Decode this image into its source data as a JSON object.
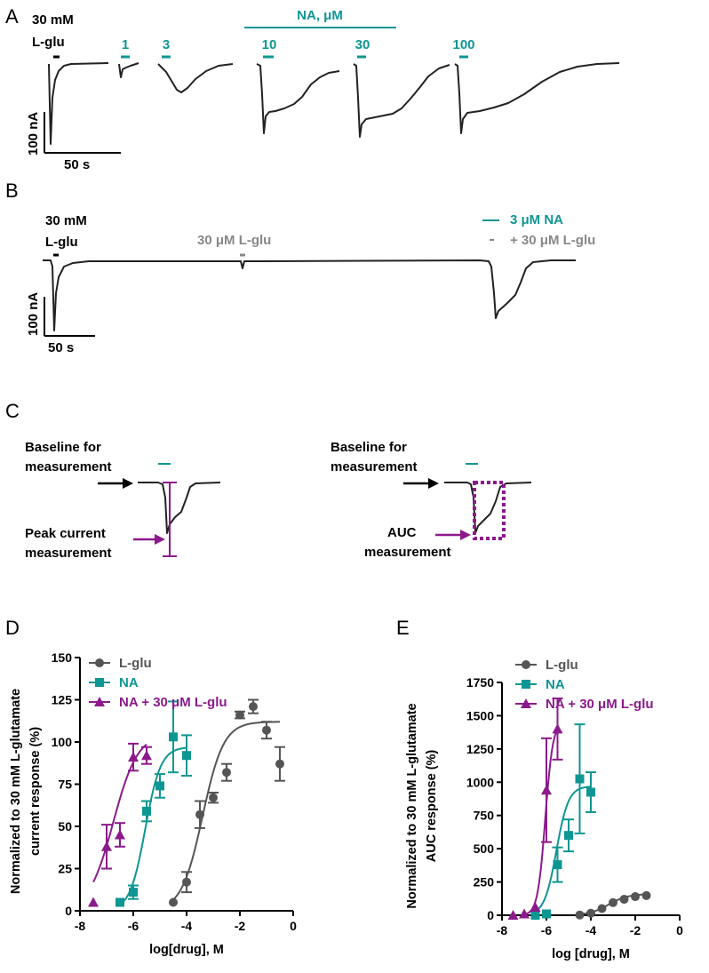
{
  "panelA": {
    "letter": "A",
    "lglu_conc": "30 mM",
    "lglu_name": "L-glu",
    "group_label": "NA, μM",
    "doses": [
      "1",
      "3",
      "10",
      "30",
      "100"
    ],
    "scale_y": "100 nA",
    "scale_x": "50 s"
  },
  "panelB": {
    "letter": "B",
    "lglu_conc": "30 mM",
    "lglu_name": "L-glu",
    "low_lglu": "30 μM L-glu",
    "na_label": "3 μM NA",
    "combo_label": "+ 30 μM L-glu",
    "scale_y": "100 nA",
    "scale_x": "50 s"
  },
  "panelC": {
    "letter": "C",
    "baseline_line1": "Baseline for",
    "baseline_line2": "measurement",
    "peak_line1": "Peak current",
    "peak_line2": "measurement",
    "auc_line1": "AUC",
    "auc_line2": "measurement"
  },
  "colors": {
    "lglu": "#555555",
    "na": "#0e9693",
    "na_lglu": "#8b1a8b",
    "grey_label": "#888888"
  },
  "chart_data": [
    {
      "panel": "D",
      "type": "scatter",
      "ylabel_line1": "Normalized to 30 mM L-glutamate",
      "ylabel_line2": "current response (%)",
      "xlabel": "log[drug], M",
      "xlim": [
        -8,
        0
      ],
      "ylim": [
        0,
        150
      ],
      "xticks": [
        -8,
        -6,
        -4,
        -2,
        0
      ],
      "yticks": [
        0,
        25,
        50,
        75,
        100,
        125,
        150
      ],
      "legend_position": "top-left",
      "series": [
        {
          "name": "L-glu",
          "marker": "circle",
          "color": "#555555",
          "x": [
            -4.5,
            -4,
            -3.5,
            -3,
            -2.5,
            -2,
            -1.5,
            -1,
            -0.5
          ],
          "y": [
            5,
            17,
            57,
            67,
            82,
            116,
            121,
            107,
            87
          ],
          "err": [
            0,
            6,
            8,
            3,
            5,
            2,
            4,
            5,
            10
          ],
          "fit": {
            "bottom": 0,
            "top": 112,
            "logEC50": -3.4,
            "hill": 1.1,
            "xmin": -4.5,
            "xmax": -0.5
          }
        },
        {
          "name": "NA",
          "marker": "square",
          "color": "#0e9693",
          "x": [
            -6.5,
            -6,
            -5.5,
            -5,
            -4.5,
            -4
          ],
          "y": [
            5,
            11,
            59,
            74,
            103,
            92
          ],
          "err": [
            0,
            4,
            6,
            7,
            21,
            12
          ],
          "fit": {
            "bottom": 0,
            "top": 97,
            "logEC50": -5.55,
            "hill": 1.5,
            "xmin": -6.5,
            "xmax": -4
          }
        },
        {
          "name": "NA + 30 μM L-glu",
          "marker": "triangle",
          "color": "#8b1a8b",
          "x": [
            -7.5,
            -7,
            -6.5,
            -6,
            -5.5
          ],
          "y": [
            5,
            38,
            45,
            91,
            92
          ],
          "err": [
            0,
            13,
            7,
            8,
            5
          ],
          "fit": {
            "bottom": 0,
            "top": 105,
            "logEC50": -6.75,
            "hill": 0.95,
            "xmin": -7.5,
            "xmax": -5.5
          }
        }
      ]
    },
    {
      "panel": "E",
      "type": "scatter",
      "ylabel_line1": "Normalized to 30 mM L-glutamate",
      "ylabel_line2": "AUC response (%)",
      "xlabel": "log [drug], M",
      "xlim": [
        -8,
        0
      ],
      "ylim": [
        0,
        1750
      ],
      "xticks": [
        -8,
        -6,
        -4,
        -2,
        0
      ],
      "yticks": [
        0,
        250,
        500,
        750,
        1000,
        1250,
        1500,
        1750
      ],
      "legend_position": "top-left",
      "series": [
        {
          "name": "L-glu",
          "marker": "circle",
          "color": "#555555",
          "x": [
            -4.5,
            -4,
            -3.5,
            -3,
            -2.5,
            -2,
            -1.5
          ],
          "y": [
            2,
            15,
            50,
            95,
            120,
            140,
            148
          ],
          "err": [
            0,
            0,
            0,
            0,
            0,
            0,
            0
          ],
          "fit": {
            "bottom": 0,
            "top": 160,
            "logEC50": -3.2,
            "hill": 1.0,
            "xmin": -4.5,
            "xmax": -1.5
          }
        },
        {
          "name": "NA",
          "marker": "square",
          "color": "#0e9693",
          "x": [
            -6.5,
            -6,
            -5.5,
            -5,
            -4.5,
            -4
          ],
          "y": [
            0,
            10,
            380,
            600,
            1025,
            925
          ],
          "err": [
            0,
            0,
            130,
            120,
            410,
            150
          ],
          "fit": {
            "bottom": 0,
            "top": 970,
            "logEC50": -5.55,
            "hill": 1.6,
            "xmin": -6.5,
            "xmax": -4
          }
        },
        {
          "name": "NA + 30 μM L-glu",
          "marker": "triangle",
          "color": "#8b1a8b",
          "x": [
            -7.5,
            -7,
            -6.5,
            -6,
            -5.5
          ],
          "y": [
            0,
            10,
            60,
            940,
            1400
          ],
          "err": [
            0,
            0,
            0,
            390,
            230
          ],
          "fit": {
            "bottom": 0,
            "top": 1460,
            "logEC50": -6.05,
            "hill": 2.5,
            "xmin": -7,
            "xmax": -5.5
          }
        }
      ]
    }
  ]
}
